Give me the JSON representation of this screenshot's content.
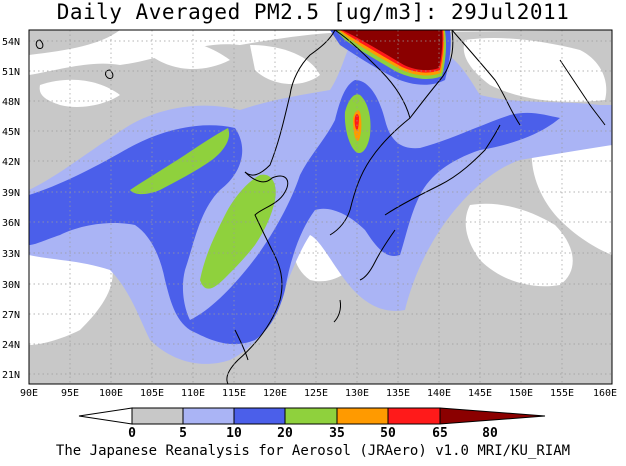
{
  "title": "Daily Averaged PM2.5 [ug/m3]: 29Jul2011",
  "footer": "The Japanese Reanalysis for Aerosol (JRAero) v1.0 MRI/KU_RIAM",
  "axes": {
    "lat_labels": [
      "54N",
      "51N",
      "48N",
      "45N",
      "42N",
      "39N",
      "36N",
      "33N",
      "30N",
      "27N",
      "24N",
      "21N"
    ],
    "lon_labels": [
      "90E",
      "95E",
      "100E",
      "105E",
      "110E",
      "115E",
      "120E",
      "125E",
      "130E",
      "135E",
      "140E",
      "145E",
      "150E",
      "155E",
      "160E"
    ]
  },
  "colorbar": {
    "labels": [
      "0",
      "5",
      "10",
      "20",
      "35",
      "50",
      "65",
      "80"
    ],
    "colors": [
      "#ffffff",
      "#c8c8c8",
      "#aab4f5",
      "#4b5fea",
      "#8fd13d",
      "#ff9a00",
      "#ff1a1a",
      "#8b0000"
    ]
  }
}
